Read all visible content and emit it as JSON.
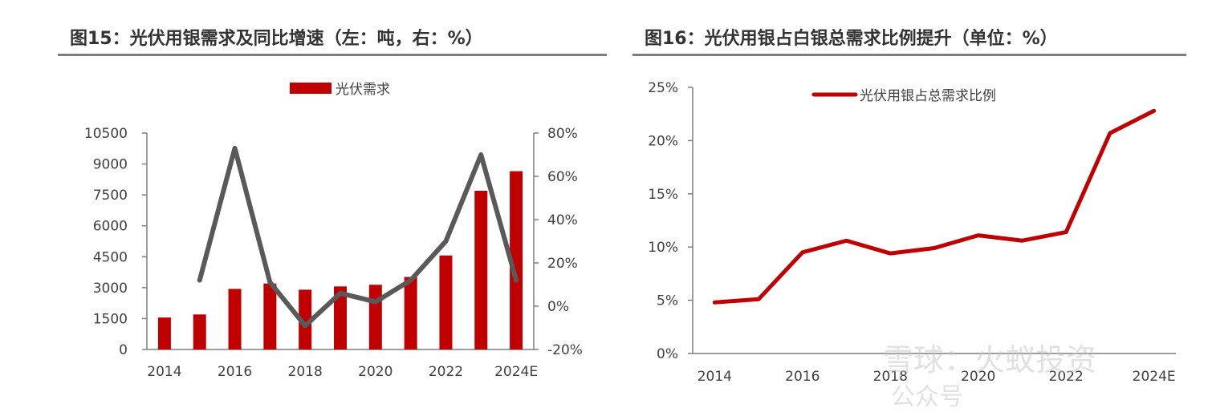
{
  "fig15": {
    "title": "图15：光伏用银需求及同比增速（左：吨，右：%）"
  },
  "fig16": {
    "title": "图16：光伏用银占白银总需求比例提升（单位：%）"
  },
  "watermark": {
    "line1": "雪球：火蚁投资",
    "line2": "公众号"
  },
  "chart_data": [
    {
      "type": "bar",
      "categories": [
        "2014",
        "2015",
        "2016",
        "2017",
        "2018",
        "2019",
        "2020",
        "2021",
        "2022",
        "2023",
        "2024E"
      ],
      "x_tick_labels": [
        "2014",
        "2016",
        "2018",
        "2020",
        "2022",
        "2024E"
      ],
      "series": [
        {
          "name": "光伏需求",
          "type": "bar",
          "axis": "left",
          "color": "#c00000",
          "values": [
            1550,
            1700,
            2940,
            3200,
            2900,
            3060,
            3140,
            3520,
            4560,
            7700,
            8650
          ]
        },
        {
          "type": "line",
          "axis": "right",
          "color": "#595959",
          "values": [
            null,
            12,
            73,
            11,
            -9,
            6,
            2,
            12,
            30,
            70,
            12
          ]
        }
      ],
      "y_left": {
        "min": 0,
        "max": 10500,
        "ticks": [
          0,
          1500,
          3000,
          4500,
          6000,
          7500,
          9000,
          10500
        ]
      },
      "y_right": {
        "min": -20,
        "max": 80,
        "ticks": [
          -20,
          0,
          20,
          40,
          60,
          80
        ],
        "unit": "%"
      },
      "legend": {
        "position": "top",
        "entries": [
          "光伏需求"
        ]
      }
    },
    {
      "type": "line",
      "x": [
        "2014",
        "2015",
        "2016",
        "2017",
        "2018",
        "2019",
        "2020",
        "2021",
        "2022",
        "2023",
        "2024E"
      ],
      "x_tick_labels": [
        "2014",
        "2016",
        "2018",
        "2020",
        "2022",
        "2024E"
      ],
      "series": [
        {
          "name": "光伏用银占总需求比例",
          "color": "#c00000",
          "values": [
            4.8,
            5.1,
            9.5,
            10.6,
            9.4,
            9.9,
            11.1,
            10.6,
            11.4,
            20.7,
            22.8
          ]
        }
      ],
      "y": {
        "min": 0,
        "max": 25,
        "ticks": [
          0,
          5,
          10,
          15,
          20,
          25
        ],
        "unit": "%"
      },
      "legend": {
        "position": "top",
        "entries": [
          "光伏用银占总需求比例"
        ]
      }
    }
  ]
}
